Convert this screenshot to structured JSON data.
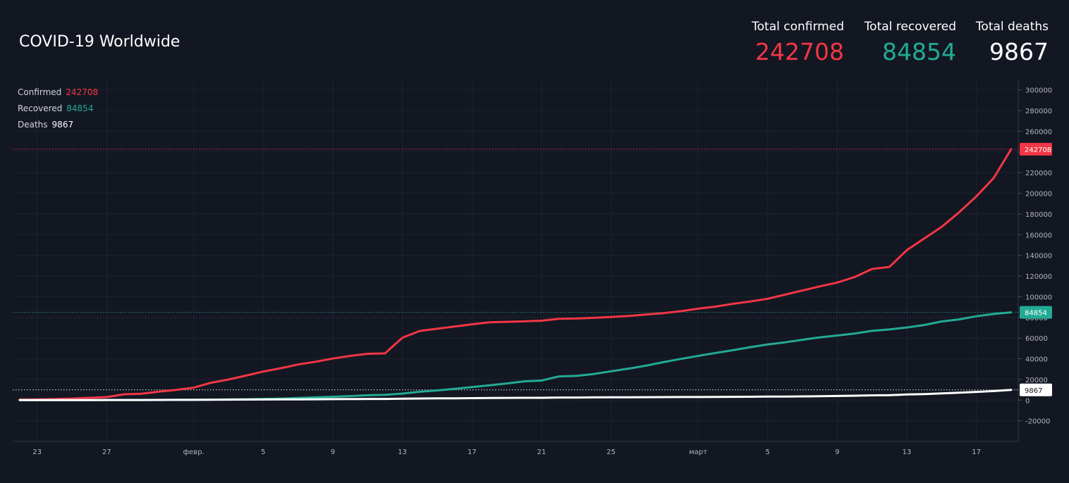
{
  "header": {
    "title": "COVID-19 Worldwide",
    "stats": [
      {
        "label": "Total confirmed",
        "value": "242708",
        "color": "#f23645"
      },
      {
        "label": "Total recovered",
        "value": "84854",
        "color": "#22ab94"
      },
      {
        "label": "Total deaths",
        "value": "9867",
        "color": "#ffffff"
      }
    ]
  },
  "legend": [
    {
      "label": "Confirmed",
      "value": "242708",
      "color": "#f23645"
    },
    {
      "label": "Recovered",
      "value": "84854",
      "color": "#22ab94"
    },
    {
      "label": "Deaths",
      "value": "9867",
      "color": "#ffffff"
    }
  ],
  "chart_data": {
    "type": "line",
    "x_tick_labels": [
      "23",
      "27",
      "февр.",
      "5",
      "9",
      "13",
      "17",
      "21",
      "25",
      "март",
      "5",
      "9",
      "13",
      "17"
    ],
    "y_tick_labels": [
      "-20000",
      "0",
      "20000",
      "40000",
      "60000",
      "80000",
      "100000",
      "120000",
      "140000",
      "160000",
      "180000",
      "200000",
      "220000",
      "240000",
      "260000",
      "280000",
      "300000"
    ],
    "ylim": [
      -40000,
      310000
    ],
    "x": [
      "2020-01-22",
      "2020-01-23",
      "2020-01-24",
      "2020-01-25",
      "2020-01-26",
      "2020-01-27",
      "2020-01-28",
      "2020-01-29",
      "2020-01-30",
      "2020-01-31",
      "2020-02-01",
      "2020-02-02",
      "2020-02-03",
      "2020-02-04",
      "2020-02-05",
      "2020-02-06",
      "2020-02-07",
      "2020-02-08",
      "2020-02-09",
      "2020-02-10",
      "2020-02-11",
      "2020-02-12",
      "2020-02-13",
      "2020-02-14",
      "2020-02-15",
      "2020-02-16",
      "2020-02-17",
      "2020-02-18",
      "2020-02-19",
      "2020-02-20",
      "2020-02-21",
      "2020-02-22",
      "2020-02-23",
      "2020-02-24",
      "2020-02-25",
      "2020-02-26",
      "2020-02-27",
      "2020-02-28",
      "2020-02-29",
      "2020-03-01",
      "2020-03-02",
      "2020-03-03",
      "2020-03-04",
      "2020-03-05",
      "2020-03-06",
      "2020-03-07",
      "2020-03-08",
      "2020-03-09",
      "2020-03-10",
      "2020-03-11",
      "2020-03-12",
      "2020-03-13",
      "2020-03-14",
      "2020-03-15",
      "2020-03-16",
      "2020-03-17",
      "2020-03-18",
      "2020-03-19"
    ],
    "series": [
      {
        "name": "Confirmed",
        "color": "#f23645",
        "last_value": "242708",
        "values": [
          600,
          700,
          1000,
          1500,
          2200,
          2900,
          5600,
          6200,
          8200,
          9900,
          12000,
          16800,
          19900,
          23700,
          27600,
          30800,
          34400,
          37100,
          40200,
          42700,
          44800,
          45200,
          60400,
          66900,
          69000,
          71200,
          73300,
          75200,
          75700,
          76200,
          76800,
          78600,
          78900,
          79600,
          80400,
          81400,
          82700,
          84100,
          86000,
          88400,
          90400,
          93100,
          95400,
          98000,
          102000,
          106000,
          110000,
          113700,
          119000,
          126800,
          128800,
          145000,
          156300,
          167500,
          181500,
          197100,
          214900,
          242708
        ]
      },
      {
        "name": "Recovered",
        "color": "#22ab94",
        "last_value": "84854",
        "values": [
          30,
          30,
          40,
          40,
          50,
          60,
          100,
          130,
          140,
          220,
          280,
          470,
          620,
          850,
          1120,
          1480,
          2010,
          2610,
          3240,
          3940,
          4680,
          5150,
          6300,
          8100,
          9400,
          10850,
          12580,
          14350,
          16120,
          18180,
          18890,
          22890,
          23390,
          25230,
          27900,
          30380,
          33280,
          36700,
          39780,
          42710,
          45600,
          48230,
          51170,
          53800,
          55870,
          58360,
          60690,
          62510,
          64400,
          67000,
          68320,
          70250,
          72620,
          76030,
          78090,
          81060,
          83300,
          84854
        ]
      },
      {
        "name": "Deaths",
        "color": "#ffffff",
        "last_value": "9867",
        "values": [
          17,
          18,
          26,
          42,
          56,
          82,
          131,
          133,
          171,
          213,
          259,
          362,
          426,
          492,
          564,
          634,
          719,
          806,
          908,
          1011,
          1113,
          1118,
          1371,
          1523,
          1666,
          1770,
          1868,
          2007,
          2122,
          2247,
          2251,
          2458,
          2469,
          2629,
          2708,
          2770,
          2814,
          2872,
          2941,
          2996,
          3085,
          3160,
          3254,
          3348,
          3460,
          3558,
          3802,
          3988,
          4262,
          4615,
          4720,
          5404,
          5819,
          6440,
          7126,
          7905,
          8733,
          9867
        ]
      }
    ]
  }
}
